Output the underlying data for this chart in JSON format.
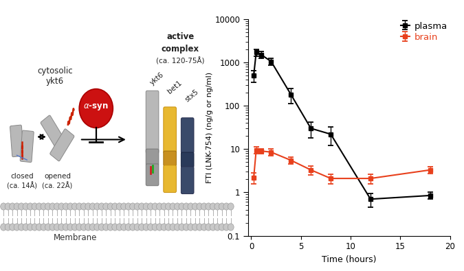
{
  "plasma_x": [
    0.25,
    0.5,
    1,
    2,
    4,
    6,
    8,
    12,
    18
  ],
  "plasma_y": [
    500,
    1700,
    1500,
    1050,
    180,
    30,
    22,
    0.7,
    0.85
  ],
  "plasma_yerr_low": [
    150,
    300,
    250,
    200,
    70,
    12,
    10,
    0.25,
    0.15
  ],
  "plasma_yerr_high": [
    150,
    300,
    250,
    200,
    70,
    12,
    10,
    0.25,
    0.15
  ],
  "brain_x": [
    0.25,
    0.5,
    1,
    2,
    4,
    6,
    8,
    12,
    18
  ],
  "brain_y": [
    2.2,
    9.5,
    9.0,
    8.5,
    5.5,
    3.3,
    2.1,
    2.1,
    3.3
  ],
  "brain_yerr_low": [
    0.6,
    1.8,
    1.2,
    1.5,
    1.0,
    0.8,
    0.5,
    0.5,
    0.6
  ],
  "brain_yerr_high": [
    0.6,
    1.8,
    1.2,
    1.5,
    1.0,
    0.8,
    0.5,
    0.5,
    0.6
  ],
  "plasma_color": "#000000",
  "brain_color": "#e8401c",
  "ylabel": "FTI (LNK-754) (ng/g or ng/ml)",
  "xlabel": "Time (hours)",
  "ylim_low": 0.1,
  "ylim_high": 10000,
  "xlim_low": -0.3,
  "xlim_high": 20,
  "xticks": [
    0,
    5,
    10,
    15,
    20
  ],
  "bg_color": "#ffffff",
  "diag_xlim": [
    0,
    10
  ],
  "diag_ylim": [
    0,
    10
  ],
  "membrane_y": 2.0,
  "membrane_color": "#aaaaaa",
  "gray_cyl": "#b8b8b8",
  "gray_cyl_ec": "#888888",
  "yellow_cyl": "#e8b830",
  "yellow_cyl_ec": "#c89010",
  "blue_cyl": "#3a4a6a",
  "blue_cyl_ec": "#2a3050",
  "red_circle": "#cc1111",
  "red_circle_ec": "#aa0000"
}
